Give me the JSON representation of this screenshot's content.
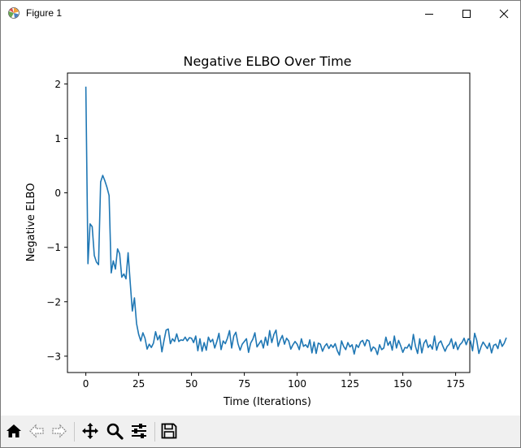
{
  "window": {
    "title": "Figure 1",
    "icons": [
      "matplotlib-icon",
      "minimize-icon",
      "maximize-icon",
      "close-icon"
    ]
  },
  "toolbar": {
    "buttons": [
      "home-icon",
      "back-icon",
      "forward-icon",
      "pan-icon",
      "zoom-icon",
      "configure-subplots-icon",
      "save-icon"
    ]
  },
  "chart_data": {
    "type": "line",
    "title": "Negative ELBO Over Time",
    "xlabel": "Time (Iterations)",
    "ylabel": "Negative ELBO",
    "xlim": [
      -8.7,
      181.7
    ],
    "ylim": [
      -3.3,
      2.2
    ],
    "xticks": [
      0,
      25,
      50,
      75,
      100,
      125,
      150,
      175
    ],
    "yticks": [
      2,
      1,
      0,
      -1,
      -2,
      -3
    ],
    "ytick_labels": [
      "2",
      "1",
      "0",
      "−1",
      "−2",
      "−3"
    ],
    "line_color": "#1f77b4",
    "grid": false,
    "series": [
      {
        "x_start": 0,
        "x_step": 1,
        "values": [
          1.95,
          -1.3,
          -0.57,
          -0.62,
          -1.15,
          -1.27,
          -1.32,
          0.2,
          0.32,
          0.22,
          0.1,
          -0.05,
          -1.47,
          -1.25,
          -1.4,
          -1.03,
          -1.12,
          -1.55,
          -1.49,
          -1.58,
          -1.1,
          -1.65,
          -2.17,
          -1.93,
          -2.4,
          -2.6,
          -2.72,
          -2.57,
          -2.67,
          -2.87,
          -2.78,
          -2.84,
          -2.76,
          -2.55,
          -2.7,
          -2.62,
          -2.92,
          -2.71,
          -2.52,
          -2.5,
          -2.77,
          -2.68,
          -2.73,
          -2.59,
          -2.73,
          -2.7,
          -2.71,
          -2.65,
          -2.72,
          -2.66,
          -2.67,
          -2.75,
          -2.63,
          -2.9,
          -2.68,
          -2.91,
          -2.75,
          -2.89,
          -2.65,
          -2.74,
          -2.69,
          -2.85,
          -2.73,
          -2.58,
          -2.88,
          -2.72,
          -2.77,
          -2.67,
          -2.53,
          -2.85,
          -2.63,
          -2.56,
          -2.77,
          -2.89,
          -2.78,
          -2.73,
          -2.68,
          -2.93,
          -2.76,
          -2.69,
          -2.57,
          -2.83,
          -2.77,
          -2.71,
          -2.85,
          -2.65,
          -2.8,
          -2.53,
          -2.75,
          -2.6,
          -2.52,
          -2.82,
          -2.7,
          -2.62,
          -2.78,
          -2.67,
          -2.72,
          -2.87,
          -2.79,
          -2.73,
          -2.78,
          -2.88,
          -2.68,
          -2.82,
          -2.79,
          -2.84,
          -2.7,
          -2.94,
          -2.74,
          -2.95,
          -2.76,
          -2.78,
          -2.91,
          -2.82,
          -2.77,
          -2.86,
          -2.79,
          -2.84,
          -2.77,
          -2.9,
          -2.98,
          -2.72,
          -2.82,
          -2.88,
          -2.75,
          -2.83,
          -2.79,
          -2.96,
          -2.79,
          -2.84,
          -2.74,
          -2.71,
          -2.81,
          -2.7,
          -2.72,
          -2.91,
          -2.83,
          -2.86,
          -2.97,
          -2.79,
          -2.88,
          -2.85,
          -2.65,
          -2.8,
          -2.73,
          -2.89,
          -2.63,
          -2.85,
          -2.71,
          -2.81,
          -2.93,
          -2.84,
          -2.85,
          -2.78,
          -2.88,
          -2.6,
          -2.82,
          -2.95,
          -2.68,
          -2.94,
          -2.76,
          -2.7,
          -2.84,
          -2.79,
          -2.87,
          -2.63,
          -2.89,
          -2.76,
          -2.72,
          -2.82,
          -2.91,
          -2.82,
          -2.78,
          -2.68,
          -2.86,
          -2.74,
          -2.88,
          -2.79,
          -2.75,
          -2.67,
          -2.79,
          -2.68,
          -2.72,
          -2.9,
          -2.58,
          -2.71,
          -2.95,
          -2.83,
          -2.74,
          -2.8,
          -2.86,
          -2.76,
          -2.94,
          -2.8,
          -2.78,
          -2.86,
          -2.7,
          -2.82,
          -2.76,
          -2.66
        ]
      }
    ]
  }
}
